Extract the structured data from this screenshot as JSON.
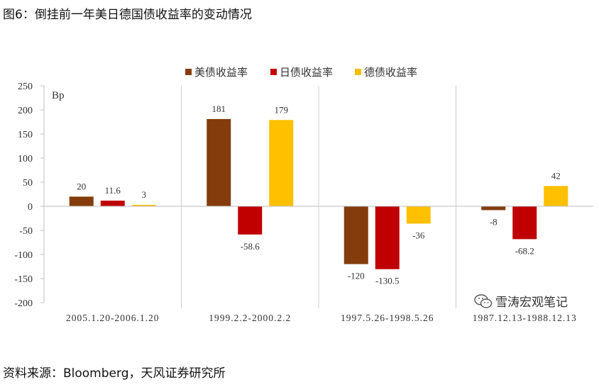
{
  "title": "图6：倒挂前一年美日德国债收益率的变动情况",
  "source": "资料来源：Bloomberg，天风证券研究所",
  "watermark": "雪涛宏观笔记",
  "chart_data": {
    "type": "bar",
    "unit_label": "Bp",
    "categories": [
      "2005.1.20-2006.1.20",
      "1999.2.2-2000.2.2",
      "1997.5.26-1998.5.26",
      "1987.12.13-1988.12.13"
    ],
    "series": [
      {
        "name": "美债收益率",
        "color": "#843C0C",
        "values": [
          20,
          181,
          -120,
          -8
        ],
        "labels": [
          "20",
          "181",
          "-120",
          "-8"
        ]
      },
      {
        "name": "日债收益率",
        "color": "#C00000",
        "values": [
          11.6,
          -58.6,
          -130.5,
          -68.2
        ],
        "labels": [
          "11.6",
          "-58.6",
          "-130.5",
          "-68.2"
        ]
      },
      {
        "name": "德债收益率",
        "color": "#FFC000",
        "values": [
          3,
          179,
          -36,
          42
        ],
        "labels": [
          "3",
          "179",
          "-36",
          "42"
        ]
      }
    ],
    "ylim": [
      -200,
      250
    ],
    "yticks": [
      250,
      200,
      150,
      100,
      50,
      0,
      -50,
      -100,
      -150,
      -200
    ],
    "xlabel": "",
    "ylabel": "",
    "legend_position": "top-center"
  }
}
